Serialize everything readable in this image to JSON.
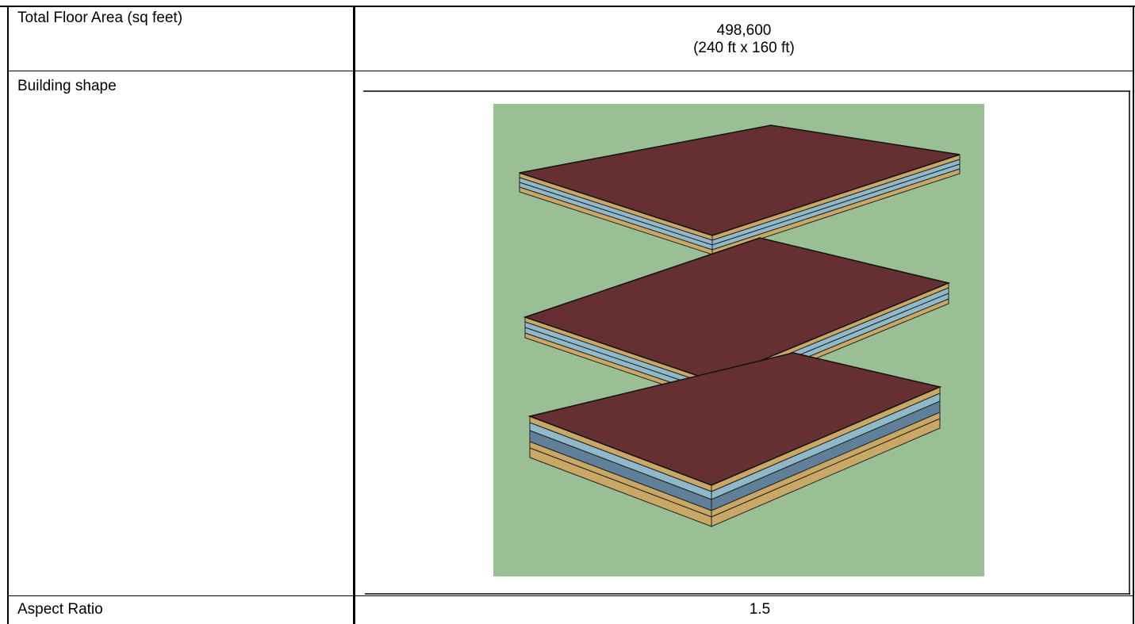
{
  "table": {
    "rows": [
      {
        "label": "Total Floor Area (sq feet)",
        "value": [
          "498,600",
          "(240 ft x 160 ft)"
        ]
      },
      {
        "label": "Building shape"
      },
      {
        "label": "Aspect Ratio",
        "value": [
          "1.5"
        ]
      }
    ]
  }
}
